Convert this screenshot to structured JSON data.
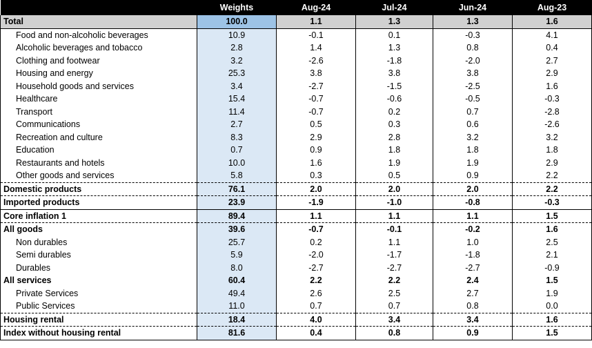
{
  "headers": [
    "",
    "Weights",
    "Aug-24",
    "Jul-24",
    "Jun-24",
    "Aug-23"
  ],
  "rows": [
    {
      "label": "Total",
      "weight": "100.0",
      "v": [
        "1.1",
        "1.3",
        "1.3",
        "1.6"
      ],
      "kind": "total"
    },
    {
      "label": "Food and non-alcoholic beverages",
      "weight": "10.9",
      "v": [
        "-0.1",
        "0.1",
        "-0.3",
        "4.1"
      ],
      "kind": "sub"
    },
    {
      "label": "Alcoholic beverages and tobacco",
      "weight": "2.8",
      "v": [
        "1.4",
        "1.3",
        "0.8",
        "0.4"
      ],
      "kind": "sub"
    },
    {
      "label": "Clothing and footwear",
      "weight": "3.2",
      "v": [
        "-2.6",
        "-1.8",
        "-2.0",
        "2.7"
      ],
      "kind": "sub"
    },
    {
      "label": "Housing and energy",
      "weight": "25.3",
      "v": [
        "3.8",
        "3.8",
        "3.8",
        "2.9"
      ],
      "kind": "sub"
    },
    {
      "label": "Household goods and services",
      "weight": "3.4",
      "v": [
        "-2.7",
        "-1.5",
        "-2.5",
        "1.6"
      ],
      "kind": "sub"
    },
    {
      "label": "Healthcare",
      "weight": "15.4",
      "v": [
        "-0.7",
        "-0.6",
        "-0.5",
        "-0.3"
      ],
      "kind": "sub"
    },
    {
      "label": "Transport",
      "weight": "11.4",
      "v": [
        "-0.7",
        "0.2",
        "0.7",
        "-2.8"
      ],
      "kind": "sub"
    },
    {
      "label": "Communications",
      "weight": "2.7",
      "v": [
        "0.5",
        "0.3",
        "0.6",
        "-2.6"
      ],
      "kind": "sub"
    },
    {
      "label": "Recreation and culture",
      "weight": "8.3",
      "v": [
        "2.9",
        "2.8",
        "3.2",
        "3.2"
      ],
      "kind": "sub"
    },
    {
      "label": "Education",
      "weight": "0.7",
      "v": [
        "0.9",
        "1.8",
        "1.8",
        "1.8"
      ],
      "kind": "sub"
    },
    {
      "label": "Restaurants and hotels",
      "weight": "10.0",
      "v": [
        "1.6",
        "1.9",
        "1.9",
        "2.9"
      ],
      "kind": "sub"
    },
    {
      "label": "Other goods and services",
      "weight": "5.8",
      "v": [
        "0.3",
        "0.5",
        "0.9",
        "2.2"
      ],
      "kind": "sub dash"
    },
    {
      "label": "Domestic products",
      "weight": "76.1",
      "v": [
        "2.0",
        "2.0",
        "2.0",
        "2.2"
      ],
      "kind": "bold dash"
    },
    {
      "label": "Imported products",
      "weight": "23.9",
      "v": [
        "-1.9",
        "-1.0",
        "-0.8",
        "-0.3"
      ],
      "kind": "bold solid"
    },
    {
      "label": "Core inflation 1",
      "weight": "89.4",
      "v": [
        "1.1",
        "1.1",
        "1.1",
        "1.5"
      ],
      "kind": "bold dash"
    },
    {
      "label": "All goods",
      "weight": "39.6",
      "v": [
        "-0.7",
        "-0.1",
        "-0.2",
        "1.6"
      ],
      "kind": "bold"
    },
    {
      "label": "Non durables",
      "weight": "25.7",
      "v": [
        "0.2",
        "1.1",
        "1.0",
        "2.5"
      ],
      "kind": "sub"
    },
    {
      "label": "Semi durables",
      "weight": "5.9",
      "v": [
        "-2.0",
        "-1.7",
        "-1.8",
        "2.1"
      ],
      "kind": "sub"
    },
    {
      "label": "Durables",
      "weight": "8.0",
      "v": [
        "-2.7",
        "-2.7",
        "-2.7",
        "-0.9"
      ],
      "kind": "sub"
    },
    {
      "label": "All services",
      "weight": "60.4",
      "v": [
        "2.2",
        "2.2",
        "2.4",
        "1.5"
      ],
      "kind": "bold"
    },
    {
      "label": "Private Services",
      "weight": "49.4",
      "v": [
        "2.6",
        "2.5",
        "2.7",
        "1.9"
      ],
      "kind": "sub"
    },
    {
      "label": "Public Services",
      "weight": "11.0",
      "v": [
        "0.7",
        "0.7",
        "0.8",
        "0.0"
      ],
      "kind": "sub dash"
    },
    {
      "label": "Housing rental",
      "weight": "18.4",
      "v": [
        "4.0",
        "3.4",
        "3.4",
        "1.6"
      ],
      "kind": "bold dash"
    },
    {
      "label": "Index without housing rental",
      "weight": "81.6",
      "v": [
        "0.4",
        "0.8",
        "0.9",
        "1.5"
      ],
      "kind": "bold last"
    }
  ]
}
